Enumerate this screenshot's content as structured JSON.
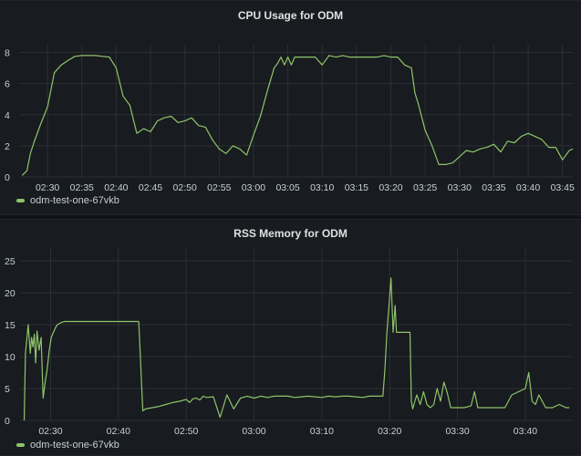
{
  "colors": {
    "series": "#8ec46a",
    "grid": "#2c3035",
    "text": "#c7d0d9"
  },
  "chart_data": [
    {
      "type": "line",
      "title": "CPU Usage for ODM",
      "xlabel": "",
      "ylabel": "",
      "x_tick_labels": [
        "02:30",
        "02:35",
        "02:40",
        "02:45",
        "02:50",
        "02:55",
        "03:00",
        "03:05",
        "03:10",
        "03:15",
        "03:20",
        "03:25",
        "03:30",
        "03:35",
        "03:40",
        "03:45"
      ],
      "y_ticks": [
        0,
        2,
        4,
        6,
        8
      ],
      "ylim": [
        0,
        8.5
      ],
      "x_range_minutes_of_day": [
        146,
        226.5
      ],
      "grid": true,
      "legend_position": "bottom-left",
      "series": [
        {
          "name": "odm-test-one-67vkb",
          "x": [
            146.3,
            147.0,
            147.5,
            148.0,
            149.0,
            150.0,
            151.0,
            152.0,
            153.0,
            154.0,
            155.0,
            156.0,
            157.0,
            158.0,
            159.0,
            160.0,
            161.0,
            162.0,
            163.0,
            164.0,
            165.0,
            166.0,
            167.0,
            168.0,
            169.0,
            170.0,
            171.0,
            172.0,
            173.0,
            174.0,
            175.0,
            176.0,
            177.0,
            178.0,
            179.0,
            180.0,
            181.0,
            182.0,
            183.0,
            183.5,
            184.0,
            184.5,
            185.0,
            185.5,
            186.0,
            187.0,
            188.0,
            189.0,
            190.0,
            191.0,
            192.0,
            193.0,
            194.0,
            195.0,
            196.0,
            197.0,
            198.0,
            199.0,
            200.0,
            201.0,
            202.0,
            203.0,
            203.5,
            204.0,
            205.0,
            206.0,
            207.0,
            208.0,
            209.0,
            210.0,
            211.0,
            212.0,
            213.0,
            214.0,
            215.0,
            216.0,
            217.0,
            218.0,
            219.0,
            220.0,
            221.0,
            222.0,
            223.0,
            224.0,
            225.0,
            226.0,
            226.5
          ],
          "y": [
            0.1,
            0.4,
            1.5,
            2.2,
            3.4,
            4.5,
            6.7,
            7.2,
            7.5,
            7.75,
            7.8,
            7.8,
            7.8,
            7.75,
            7.7,
            7.0,
            5.2,
            4.6,
            2.8,
            3.1,
            2.9,
            3.6,
            3.8,
            3.9,
            3.5,
            3.6,
            3.8,
            3.3,
            3.2,
            2.4,
            1.8,
            1.5,
            2.0,
            1.8,
            1.4,
            2.7,
            3.9,
            5.5,
            7.0,
            7.3,
            7.7,
            7.2,
            7.7,
            7.2,
            7.7,
            7.7,
            7.7,
            7.7,
            7.2,
            7.8,
            7.7,
            7.8,
            7.7,
            7.7,
            7.7,
            7.7,
            7.7,
            7.8,
            7.7,
            7.7,
            7.2,
            7.0,
            5.4,
            4.7,
            3.0,
            2.0,
            0.8,
            0.8,
            0.9,
            1.3,
            1.7,
            1.6,
            1.8,
            1.9,
            2.1,
            1.6,
            2.3,
            2.2,
            2.6,
            2.8,
            2.6,
            2.4,
            1.9,
            1.9,
            1.1,
            1.7,
            1.8
          ]
        }
      ]
    },
    {
      "type": "line",
      "title": "RSS Memory for ODM",
      "xlabel": "",
      "ylabel": "",
      "x_tick_labels": [
        "02:30",
        "02:40",
        "02:50",
        "03:00",
        "03:10",
        "03:20",
        "03:30",
        "03:40"
      ],
      "y_ticks": [
        0,
        5,
        10,
        15,
        20,
        25
      ],
      "ylim": [
        0,
        27
      ],
      "x_range_minutes_of_day": [
        145.5,
        227
      ],
      "grid": true,
      "legend_position": "bottom-left",
      "series": [
        {
          "name": "odm-test-one-67vkb",
          "x": [
            146.1,
            146.3,
            146.7,
            147.0,
            147.2,
            147.4,
            147.6,
            147.8,
            148.0,
            148.3,
            148.6,
            148.9,
            149.2,
            149.5,
            149.8,
            150.1,
            150.5,
            150.7,
            151.0,
            151.5,
            152.0,
            152.5,
            153.0,
            154.0,
            155.0,
            157.0,
            160.0,
            163.0,
            163.6,
            164.0,
            165.0,
            166.0,
            167.0,
            168.0,
            169.0,
            170.0,
            170.5,
            171.0,
            171.5,
            172.0,
            172.5,
            173.0,
            174.0,
            175.0,
            176.0,
            177.0,
            178.0,
            179.0,
            180.0,
            181.0,
            182.0,
            183.0,
            184.0,
            185.0,
            186.0,
            187.0,
            188.0,
            189.0,
            190.0,
            191.0,
            192.0,
            193.0,
            194.0,
            195.0,
            196.0,
            197.0,
            198.0,
            199.0,
            199.3,
            199.6,
            199.9,
            200.2,
            200.5,
            200.8,
            201.0,
            201.5,
            202.0,
            202.5,
            203.0,
            203.2,
            203.4,
            203.7,
            204.0,
            204.5,
            205.0,
            205.5,
            206.0,
            206.5,
            207.0,
            207.5,
            208.0,
            208.5,
            209.0,
            210.0,
            211.0,
            212.0,
            212.5,
            213.0,
            213.5,
            214.0,
            214.5,
            215.0,
            216.0,
            217.0,
            218.0,
            219.0,
            220.0,
            220.5,
            221.0,
            221.5,
            222.0,
            223.0,
            224.0,
            225.0,
            226.0,
            226.5
          ],
          "y": [
            0,
            10.5,
            15,
            10.5,
            13,
            11.5,
            13.5,
            9,
            14,
            11,
            13,
            3.5,
            6,
            8,
            11,
            13,
            14,
            14.5,
            15,
            15.3,
            15.5,
            15.5,
            15.5,
            15.5,
            15.5,
            15.5,
            15.5,
            15.5,
            1.5,
            1.8,
            2,
            2.2,
            2.5,
            2.8,
            3,
            3.3,
            2.8,
            3.4,
            3.5,
            3.2,
            3.8,
            3.6,
            3.7,
            0.5,
            4,
            1.8,
            3.5,
            3.8,
            3.5,
            3.8,
            3.6,
            3.8,
            3.8,
            3.8,
            3.6,
            3.7,
            3.8,
            3.7,
            3.6,
            3.8,
            3.7,
            3.8,
            3.8,
            3.7,
            3.6,
            3.8,
            3.8,
            3.8,
            8,
            14,
            18,
            22.3,
            13.8,
            18,
            13.8,
            13.8,
            13.8,
            13.8,
            13.8,
            3,
            1.8,
            3,
            4,
            2.5,
            4.5,
            2.5,
            2,
            2.5,
            5,
            3,
            6,
            4.3,
            2,
            2,
            2,
            2.3,
            4.5,
            2,
            2,
            2,
            2,
            2,
            2,
            2,
            4,
            4.5,
            5,
            7.5,
            3,
            2.5,
            4,
            2,
            2,
            2.5,
            2,
            2
          ]
        }
      ]
    }
  ]
}
